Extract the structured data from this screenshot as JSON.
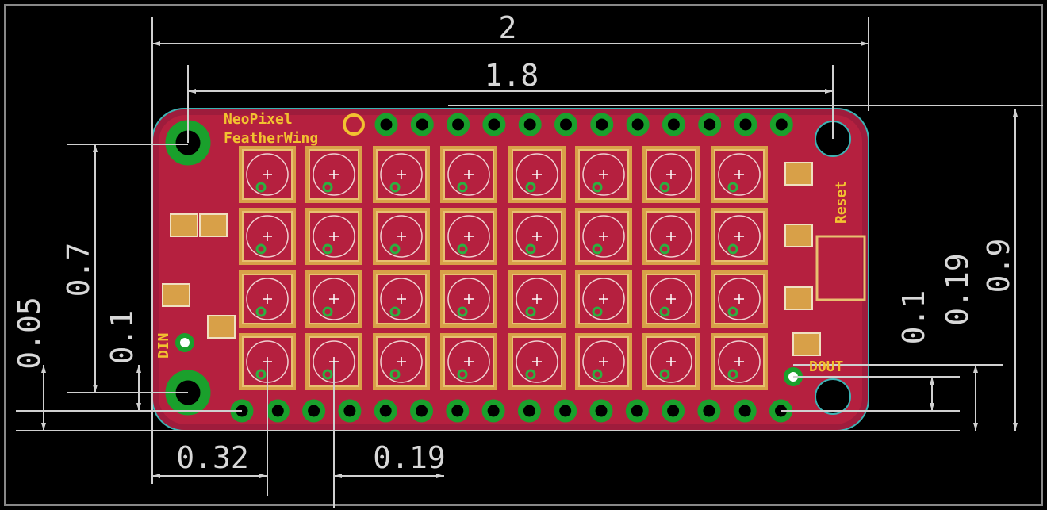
{
  "board": {
    "title_line1": "NeoPixel",
    "title_line2": "FeatherWing",
    "labels": {
      "reset": "Reset",
      "din": "DIN",
      "dout": "DOUT"
    }
  },
  "dimensions": {
    "overall_width": "2",
    "hole_spacing_x": "1.8",
    "hole_spacing_y": "0.7",
    "hole_offset_left": "0.1",
    "edge_offset_left": "0.05",
    "hole_offset_right": "0.1",
    "pin_offset_right": "0.19",
    "overall_height": "0.9",
    "first_led_x": "0.32",
    "led_pitch": "0.19"
  }
}
